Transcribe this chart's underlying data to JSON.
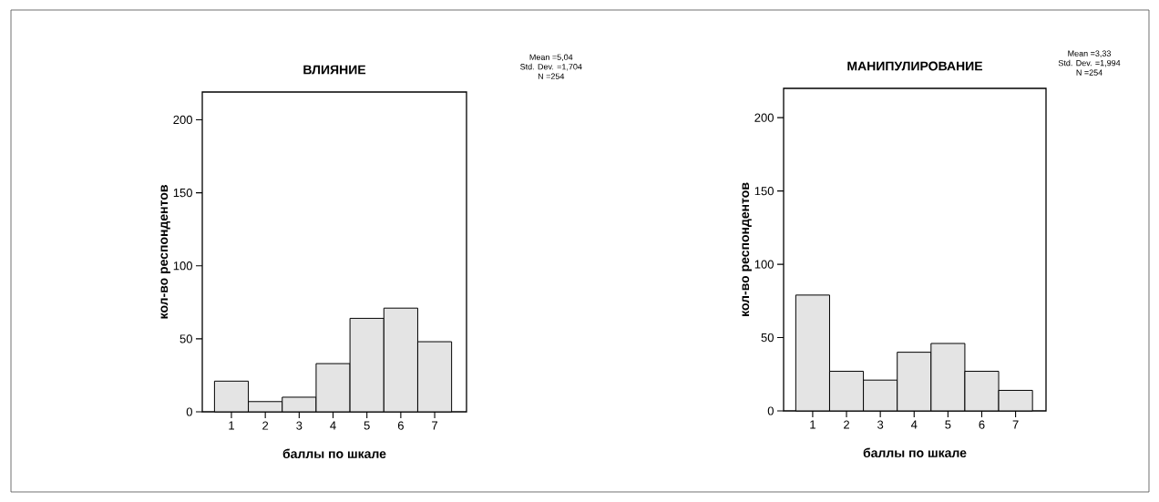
{
  "chart_data": [
    {
      "type": "histogram",
      "title": "ВЛИЯНИЕ",
      "xlabel": "баллы по шкале",
      "ylabel": "кол-во респондентов",
      "annotations": [
        "Mean =5,04",
        "Std. Dev. =1,704",
        "N =254"
      ],
      "bins": [
        0.5,
        1.5,
        2.5,
        3.5,
        4.5,
        5.5,
        6.5,
        7.5
      ],
      "values": [
        21,
        7,
        10,
        33,
        64,
        71,
        48
      ],
      "color": "#e4e4e4",
      "xlim": [
        0.14,
        7.94
      ],
      "xticks": [
        1,
        2,
        3,
        4,
        5,
        6,
        7
      ],
      "ylim": [
        0,
        219
      ],
      "yticks": [
        0,
        50,
        100,
        150,
        200
      ]
    },
    {
      "type": "histogram",
      "title": "МАНИПУЛИРОВАНИЕ",
      "xlabel": "баллы по шкале",
      "ylabel": "кол-во респондентов",
      "annotations": [
        "Mean =3,33",
        "Std. Dev. =1,994",
        "N =254"
      ],
      "bins": [
        0.5,
        1.5,
        2.5,
        3.5,
        4.5,
        5.5,
        6.5,
        7.5
      ],
      "values": [
        79,
        27,
        21,
        40,
        46,
        27,
        14
      ],
      "color": "#e4e4e4",
      "xlim": [
        0.14,
        7.9
      ],
      "xticks": [
        1,
        2,
        3,
        4,
        5,
        6,
        7
      ],
      "ylim": [
        0,
        220
      ],
      "yticks": [
        0,
        50,
        100,
        150,
        200
      ]
    }
  ]
}
